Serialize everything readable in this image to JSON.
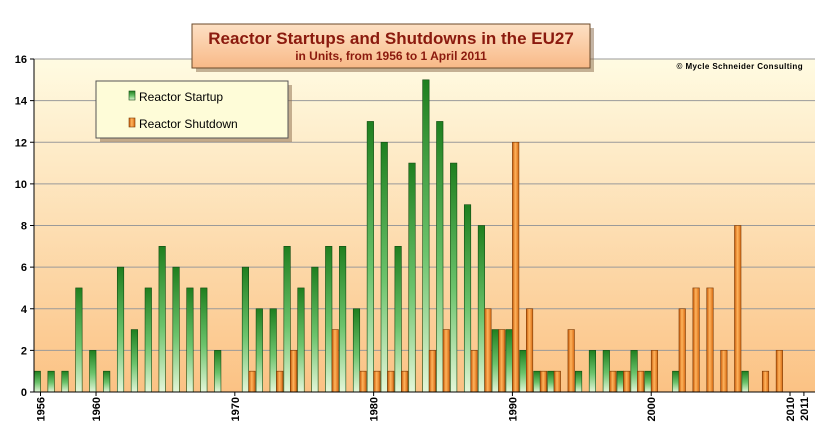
{
  "chart_data": {
    "type": "bar",
    "title": "Reactor Startups and Shutdowns in the EU27",
    "subtitle": "in Units, from 1956 to 1 April 2011",
    "copyright": "© Mycle Schneider Consulting",
    "legend_position": "top-left",
    "grid": true,
    "ylim": [
      0,
      16
    ],
    "xlim": [
      1956,
      2011
    ],
    "y_ticks": [
      "0",
      "2",
      "4",
      "6",
      "8",
      "10",
      "12",
      "14",
      "16"
    ],
    "x_ticks": [
      "1956",
      "1960",
      "1970",
      "1980",
      "1990",
      "2000",
      "2010",
      "2011"
    ],
    "colors": {
      "startup": "#2f9a2f",
      "shutdown": "#ee7a1c",
      "plot_top": "#fffbe2",
      "plot_bottom": "#fbc284",
      "title_box": "#fac9a0",
      "title_text": "#8b1a0e"
    },
    "series": [
      {
        "name": "Reactor Startup",
        "color": "#2f9a2f",
        "values": [
          [
            1956,
            1
          ],
          [
            1957,
            1
          ],
          [
            1958,
            1
          ],
          [
            1959,
            5
          ],
          [
            1960,
            2
          ],
          [
            1961,
            1
          ],
          [
            1962,
            6
          ],
          [
            1963,
            3
          ],
          [
            1964,
            5
          ],
          [
            1965,
            7
          ],
          [
            1966,
            6
          ],
          [
            1967,
            5
          ],
          [
            1968,
            5
          ],
          [
            1969,
            2
          ],
          [
            1971,
            6
          ],
          [
            1972,
            4
          ],
          [
            1973,
            4
          ],
          [
            1974,
            7
          ],
          [
            1975,
            5
          ],
          [
            1976,
            6
          ],
          [
            1977,
            7
          ],
          [
            1978,
            7
          ],
          [
            1979,
            4
          ],
          [
            1980,
            13
          ],
          [
            1981,
            12
          ],
          [
            1982,
            7
          ],
          [
            1983,
            11
          ],
          [
            1984,
            15
          ],
          [
            1985,
            13
          ],
          [
            1986,
            11
          ],
          [
            1987,
            9
          ],
          [
            1988,
            8
          ],
          [
            1989,
            3
          ],
          [
            1990,
            3
          ],
          [
            1991,
            2
          ],
          [
            1992,
            1
          ],
          [
            1993,
            1
          ],
          [
            1995,
            1
          ],
          [
            1996,
            2
          ],
          [
            1997,
            2
          ],
          [
            1998,
            1
          ],
          [
            1999,
            2
          ],
          [
            2000,
            1
          ],
          [
            2002,
            1
          ],
          [
            2007,
            1
          ]
        ]
      },
      {
        "name": "Reactor Shutdown",
        "color": "#ee7a1c",
        "values": [
          [
            1971,
            1
          ],
          [
            1973,
            1
          ],
          [
            1974,
            2
          ],
          [
            1977,
            3
          ],
          [
            1979,
            1
          ],
          [
            1980,
            1
          ],
          [
            1981,
            1
          ],
          [
            1982,
            1
          ],
          [
            1984,
            2
          ],
          [
            1985,
            3
          ],
          [
            1987,
            2
          ],
          [
            1988,
            4
          ],
          [
            1989,
            3
          ],
          [
            1990,
            12
          ],
          [
            1991,
            4
          ],
          [
            1992,
            1
          ],
          [
            1993,
            1
          ],
          [
            1994,
            3
          ],
          [
            1997,
            1
          ],
          [
            1998,
            1
          ],
          [
            1999,
            1
          ],
          [
            2000,
            2
          ],
          [
            2002,
            4
          ],
          [
            2003,
            5
          ],
          [
            2004,
            5
          ],
          [
            2005,
            2
          ],
          [
            2006,
            8
          ],
          [
            2008,
            1
          ],
          [
            2009,
            2
          ]
        ]
      }
    ]
  }
}
